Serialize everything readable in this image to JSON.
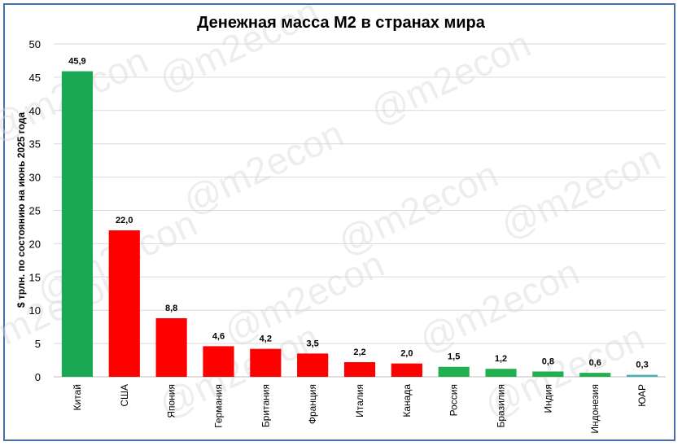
{
  "watermark": "@m2econ",
  "colors": {
    "china": "#1aa855",
    "red": "#ff0000",
    "green": "#21b050",
    "teal": "#46b3b0",
    "frame": "#4a6fa5"
  },
  "chart_data": {
    "type": "bar",
    "title": "Денежная масса М2 в странах мира",
    "ylabel": "$ трлн. по состоянию на июнь 2025 года",
    "xlabel": "",
    "ylim": [
      0,
      50
    ],
    "yticks": [
      0,
      5,
      10,
      15,
      20,
      25,
      30,
      35,
      40,
      45,
      50
    ],
    "grid": true,
    "categories": [
      "Китай",
      "США",
      "Япония",
      "Германия",
      "Британия",
      "Франция",
      "Италия",
      "Канада",
      "Россия",
      "Бразилия",
      "Индия",
      "Индонезия",
      "ЮАР"
    ],
    "values": [
      45.9,
      22.0,
      8.8,
      4.6,
      4.2,
      3.5,
      2.2,
      2.0,
      1.5,
      1.2,
      0.8,
      0.6,
      0.3
    ],
    "value_labels": [
      "45,9",
      "22,0",
      "8,8",
      "4,6",
      "4,2",
      "3,5",
      "2,2",
      "2,0",
      "1,5",
      "1,2",
      "0,8",
      "0,6",
      "0,3"
    ],
    "bar_colors": [
      "#1aa855",
      "#ff0000",
      "#ff0000",
      "#ff0000",
      "#ff0000",
      "#ff0000",
      "#ff0000",
      "#ff0000",
      "#21b050",
      "#21b050",
      "#21b050",
      "#21b050",
      "#46b3b0"
    ]
  }
}
